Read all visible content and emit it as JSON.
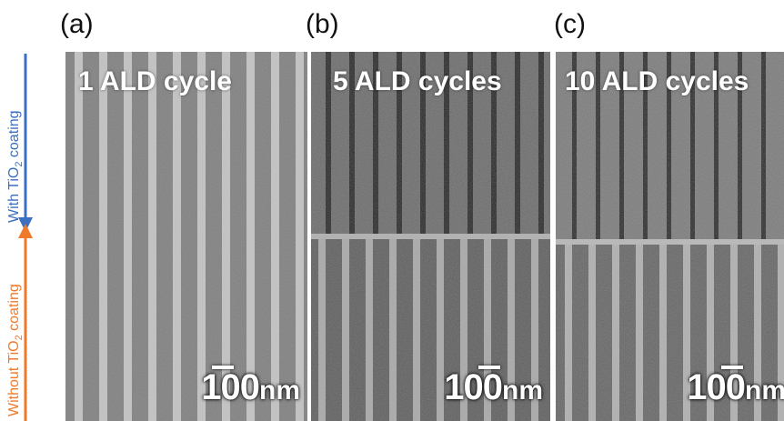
{
  "figure": {
    "panels": [
      {
        "label": "(a)",
        "condition": "1 ALD cycle",
        "scale": {
          "number": "100",
          "unit": "nm"
        }
      },
      {
        "label": "(b)",
        "condition": "5 ALD cycles",
        "scale": {
          "number": "100",
          "unit": "nm"
        }
      },
      {
        "label": "(c)",
        "condition": "10 ALD cycles",
        "scale": {
          "number": "100",
          "unit": "nm"
        }
      }
    ],
    "side_labels": {
      "with": {
        "prefix": "With TiO",
        "sub": "2",
        "suffix": " coating",
        "color": "#3b6fc0"
      },
      "without": {
        "prefix": "Without TiO",
        "sub": "2",
        "suffix": " coating",
        "color": "#f07a2a"
      }
    }
  }
}
